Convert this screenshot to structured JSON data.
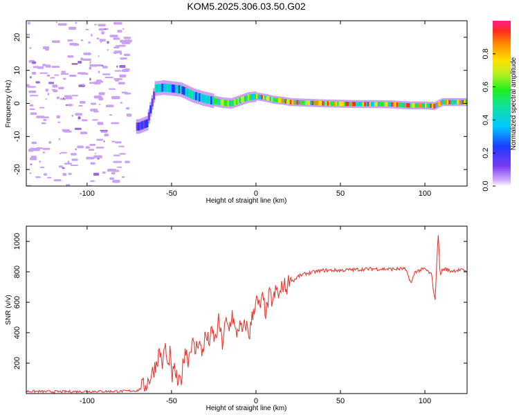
{
  "title": "KOM5.2025.306.03.50.G02",
  "colors": {
    "snr_line": "#e33a33",
    "axis": "#000000",
    "noise_blob": "#c9a2f4",
    "noise_blob_dark": "#9b6ad9"
  },
  "chart_data": [
    {
      "id": "spectrogram",
      "type": "heatmap",
      "xlabel": "Height of straight line (km)",
      "ylabel": "Frequency (Hz)",
      "xlim": [
        -136,
        125
      ],
      "ylim": [
        -25,
        25
      ],
      "xticks": [
        -100,
        -50,
        0,
        50,
        100
      ],
      "yticks": [
        20,
        10,
        0,
        -10,
        -20
      ],
      "colorbar": {
        "label": "Normalized spectral amplitude",
        "range": [
          0,
          1
        ],
        "ticks": [
          "0.0",
          "0.2",
          "0.4",
          "0.6",
          "0.8"
        ]
      },
      "ridge": [
        [
          -70,
          -7
        ],
        [
          -65,
          -6
        ],
        [
          -60,
          4.5
        ],
        [
          -55,
          4.8
        ],
        [
          -50,
          4.5
        ],
        [
          -45,
          4.2
        ],
        [
          -38,
          2.5
        ],
        [
          -32,
          1.5
        ],
        [
          -26,
          0.8
        ],
        [
          -20,
          0.2
        ],
        [
          -15,
          0
        ],
        [
          -10,
          0.9
        ],
        [
          -5,
          1.8
        ],
        [
          0,
          2.1
        ],
        [
          5,
          1.7
        ],
        [
          10,
          1.1
        ],
        [
          15,
          0.8
        ],
        [
          20,
          0.4
        ],
        [
          30,
          0.2
        ],
        [
          40,
          0
        ],
        [
          50,
          -0.1
        ],
        [
          60,
          -0.2
        ],
        [
          70,
          -0.2
        ],
        [
          80,
          -0.3
        ],
        [
          90,
          -0.6
        ],
        [
          100,
          -0.6
        ],
        [
          105,
          -0.8
        ],
        [
          110,
          0.4
        ],
        [
          125,
          0.4
        ]
      ]
    },
    {
      "id": "snr",
      "type": "line",
      "xlabel": "Height of straight line (km)",
      "ylabel": "SNR (v/v)",
      "xlim": [
        -136,
        125
      ],
      "ylim": [
        0,
        1100
      ],
      "xticks": [
        -100,
        -50,
        0,
        50,
        100
      ],
      "yticks": [
        1000,
        800,
        600,
        400,
        200
      ],
      "series": [
        {
          "name": "SNR",
          "x": [
            -136,
            -120,
            -100,
            -80,
            -70,
            -65,
            -62,
            -59,
            -57,
            -55,
            -54,
            -52,
            -51,
            -50,
            -48,
            -46,
            -44,
            -42,
            -40,
            -38,
            -36,
            -34,
            -32,
            -30,
            -28,
            -26,
            -24,
            -22,
            -20,
            -18,
            -16,
            -14,
            -12,
            -10,
            -8,
            -6,
            -4,
            -2,
            0,
            2,
            4,
            6,
            8,
            10,
            12,
            14,
            16,
            18,
            20,
            22,
            25,
            30,
            35,
            40,
            50,
            60,
            70,
            80,
            88,
            90,
            92,
            94,
            100,
            104,
            106,
            107,
            108,
            109,
            110,
            112,
            115,
            120,
            125
          ],
          "y": [
            15,
            12,
            14,
            15,
            20,
            60,
            120,
            200,
            280,
            180,
            340,
            140,
            300,
            100,
            160,
            50,
            110,
            300,
            220,
            350,
            270,
            360,
            260,
            380,
            340,
            400,
            350,
            480,
            320,
            470,
            420,
            530,
            380,
            450,
            400,
            460,
            380,
            520,
            620,
            560,
            620,
            530,
            650,
            600,
            680,
            640,
            720,
            690,
            760,
            740,
            770,
            790,
            800,
            810,
            810,
            815,
            820,
            818,
            820,
            780,
            720,
            800,
            820,
            780,
            600,
            850,
            1070,
            760,
            810,
            820,
            805,
            812,
            808
          ]
        }
      ]
    }
  ]
}
